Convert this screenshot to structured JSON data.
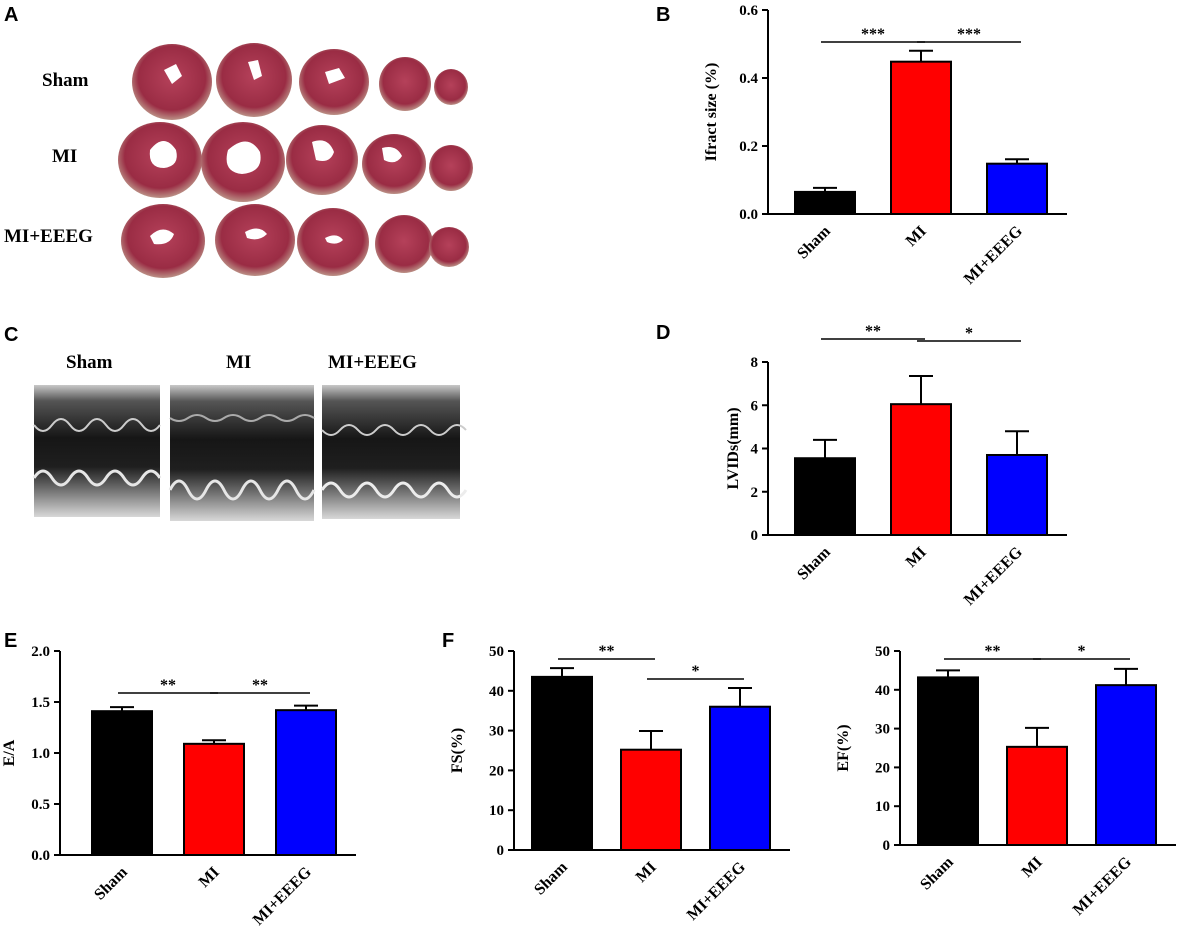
{
  "panels": {
    "a": "A",
    "b": "B",
    "c": "C",
    "d": "D",
    "e": "E",
    "f": "F"
  },
  "panel_a": {
    "row_labels": [
      "Sham",
      "MI",
      "MI+EEEG"
    ],
    "colors": {
      "tissue": "#9c2e45",
      "infarct": "#ffffff"
    }
  },
  "panel_c": {
    "labels": [
      "Sham",
      "MI",
      "MI+EEEG"
    ]
  },
  "chart_data": [
    {
      "id": "B",
      "type": "bar",
      "categories": [
        "Sham",
        "MI",
        "MI+EEEG"
      ],
      "values": [
        0.065,
        0.448,
        0.148
      ],
      "errors": [
        0.012,
        0.032,
        0.013
      ],
      "colors": [
        "#000000",
        "#ff0000",
        "#0000ff"
      ],
      "ylabel": "Ifract size (%)",
      "ylim": [
        0,
        0.6
      ],
      "yticks": [
        0.0,
        0.2,
        0.4,
        0.6
      ],
      "ytick_labels": [
        "0.0",
        "0.2",
        "0.4",
        "0.6"
      ],
      "significance": [
        {
          "from": 0,
          "to": 1,
          "label": "***"
        },
        {
          "from": 1,
          "to": 2,
          "label": "***"
        }
      ]
    },
    {
      "id": "D",
      "type": "bar",
      "categories": [
        "Sham",
        "MI",
        "MI+EEEG"
      ],
      "values": [
        3.55,
        6.05,
        3.7
      ],
      "errors": [
        0.85,
        1.3,
        1.1
      ],
      "colors": [
        "#000000",
        "#ff0000",
        "#0000ff"
      ],
      "ylabel": "LVIDs(mm)",
      "ylim": [
        0,
        8
      ],
      "yticks": [
        0,
        2,
        4,
        6,
        8
      ],
      "ytick_labels": [
        "0",
        "2",
        "4",
        "6",
        "8"
      ],
      "significance": [
        {
          "from": 0,
          "to": 1,
          "label": "**"
        },
        {
          "from": 1,
          "to": 2,
          "label": "*"
        }
      ]
    },
    {
      "id": "E",
      "type": "bar",
      "categories": [
        "Sham",
        "MI",
        "MI+EEEG"
      ],
      "values": [
        1.41,
        1.09,
        1.42
      ],
      "errors": [
        0.04,
        0.035,
        0.045
      ],
      "colors": [
        "#000000",
        "#ff0000",
        "#0000ff"
      ],
      "ylabel": "E/A",
      "ylim": [
        0,
        2.0
      ],
      "yticks": [
        0.0,
        0.5,
        1.0,
        1.5,
        2.0
      ],
      "ytick_labels": [
        "0.0",
        "0.5",
        "1.0",
        "1.5",
        "2.0"
      ],
      "significance": [
        {
          "from": 0,
          "to": 1,
          "label": "**"
        },
        {
          "from": 1,
          "to": 2,
          "label": "**"
        }
      ]
    },
    {
      "id": "F-FS",
      "type": "bar",
      "categories": [
        "Sham",
        "MI",
        "MI+EEEG"
      ],
      "values": [
        43.5,
        25.2,
        36.0
      ],
      "errors": [
        2.2,
        4.7,
        4.7
      ],
      "colors": [
        "#000000",
        "#ff0000",
        "#0000ff"
      ],
      "ylabel": "FS(%)",
      "ylim": [
        0,
        50
      ],
      "yticks": [
        0,
        10,
        20,
        30,
        40,
        50
      ],
      "ytick_labels": [
        "0",
        "10",
        "20",
        "30",
        "40",
        "50"
      ],
      "significance": [
        {
          "from": 0,
          "to": 1,
          "label": "**"
        },
        {
          "from": 1,
          "to": 2,
          "label": "*"
        }
      ]
    },
    {
      "id": "F-EF",
      "type": "bar",
      "categories": [
        "Sham",
        "MI",
        "MI+EEEG"
      ],
      "values": [
        43.2,
        25.3,
        41.2
      ],
      "errors": [
        1.8,
        4.9,
        4.2
      ],
      "colors": [
        "#000000",
        "#ff0000",
        "#0000ff"
      ],
      "ylabel": "EF(%)",
      "ylim": [
        0,
        50
      ],
      "yticks": [
        0,
        10,
        20,
        30,
        40,
        50
      ],
      "ytick_labels": [
        "0",
        "10",
        "20",
        "30",
        "40",
        "50"
      ],
      "significance": [
        {
          "from": 0,
          "to": 1,
          "label": "**"
        },
        {
          "from": 1,
          "to": 2,
          "label": "*"
        }
      ]
    }
  ]
}
